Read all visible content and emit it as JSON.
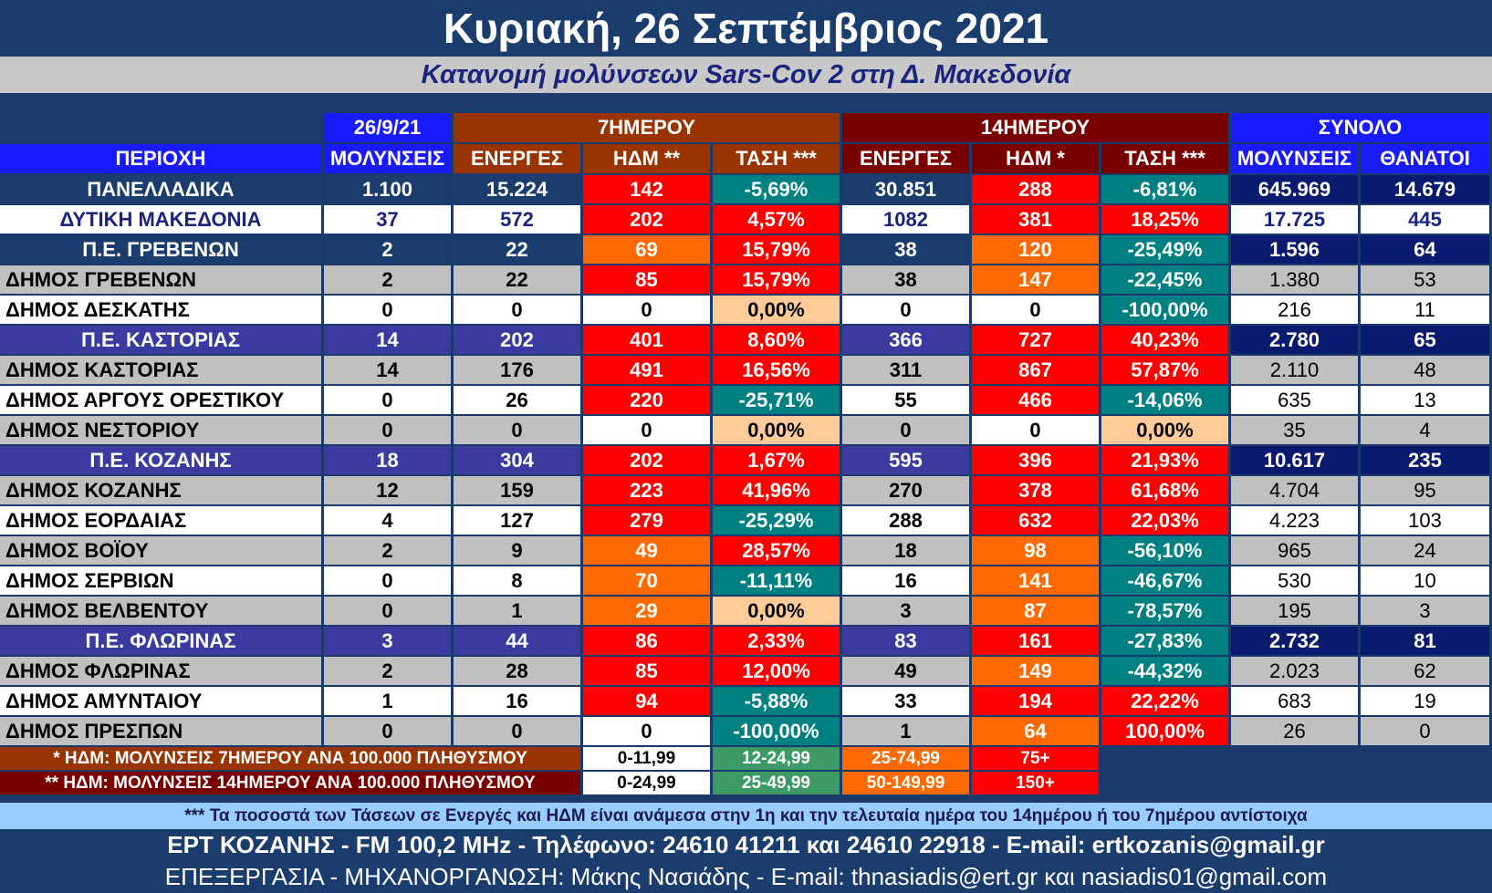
{
  "title": "Κυριακή, 26 Σεπτέμβριος 2021",
  "subtitle": "Κατανομή μολύνσεων Sars-Cov 2 στη Δ. Μακεδονία",
  "header": {
    "date": "26/9/21",
    "week7": "7ΗΜΕΡΟΥ",
    "week14": "14ΗΜΕΡΟΥ",
    "total": "ΣΥΝΟΛΟ",
    "area": "ΠΕΡΙΟΧΗ",
    "cols": [
      "ΜΟΛΥΝΣΕΙΣ",
      "ΕΝΕΡΓΕΣ",
      "ΗΔΜ **",
      "ΤΑΣΗ ***",
      "ΕΝΕΡΓΕΣ",
      "ΗΔΜ *",
      "ΤΑΣΗ ***",
      "ΜΟΛΥΝΣΕΙΣ",
      "ΘΑΝΑΤΟΙ"
    ]
  },
  "rows": [
    {
      "name": "ΠΑΝΕΛΛΑΔΙΚΑ",
      "type": "national",
      "cells": [
        "1.100",
        "15.224",
        "142",
        "-5,69%",
        "30.851",
        "288",
        "-6,81%",
        "645.969",
        "14.679"
      ],
      "colors": [
        "navy",
        "navy",
        "red",
        "teal",
        "navy",
        "red",
        "teal",
        "dnavy",
        "dnavy"
      ]
    },
    {
      "name": "ΔΥΤΙΚΗ ΜΑΚΕΔΟΝΙΑ",
      "type": "region",
      "cells": [
        "37",
        "572",
        "202",
        "4,57%",
        "1082",
        "381",
        "18,25%",
        "17.725",
        "445"
      ],
      "colors": [
        "white",
        "white",
        "red",
        "red",
        "white",
        "red",
        "red",
        "white",
        "white"
      ]
    },
    {
      "name": "Π.Ε. ΓΡΕΒΕΝΩΝ",
      "type": "pe-navy",
      "cells": [
        "2",
        "22",
        "69",
        "15,79%",
        "38",
        "120",
        "-25,49%",
        "1.596",
        "64"
      ],
      "colors": [
        "navy",
        "navy",
        "orange",
        "red",
        "navy",
        "orange",
        "teal",
        "dnavy",
        "dnavy"
      ]
    },
    {
      "name": "ΔΗΜΟΣ ΓΡΕΒΕΝΩΝ",
      "type": "gray",
      "cells": [
        "2",
        "22",
        "85",
        "15,79%",
        "38",
        "147",
        "-22,45%",
        "1.380",
        "53"
      ],
      "colors": [
        "gray",
        "gray",
        "red",
        "red",
        "gray",
        "orange",
        "teal",
        "gray",
        "gray"
      ]
    },
    {
      "name": "ΔΗΜΟΣ ΔΕΣΚΑΤΗΣ",
      "type": "white",
      "cells": [
        "0",
        "0",
        "0",
        "0,00%",
        "0",
        "0",
        "-100,00%",
        "216",
        "11"
      ],
      "colors": [
        "white",
        "white",
        "white",
        "peach",
        "white",
        "white",
        "teal",
        "white",
        "white"
      ]
    },
    {
      "name": "Π.Ε. ΚΑΣΤΟΡΙΑΣ",
      "type": "pe-purple",
      "cells": [
        "14",
        "202",
        "401",
        "8,60%",
        "366",
        "727",
        "40,23%",
        "2.780",
        "65"
      ],
      "colors": [
        "purple",
        "purple",
        "red",
        "red",
        "purple",
        "red",
        "red",
        "dnavy",
        "dnavy"
      ]
    },
    {
      "name": "ΔΗΜΟΣ ΚΑΣΤΟΡΙΑΣ",
      "type": "gray",
      "cells": [
        "14",
        "176",
        "491",
        "16,56%",
        "311",
        "867",
        "57,87%",
        "2.110",
        "48"
      ],
      "colors": [
        "gray",
        "gray",
        "red",
        "red",
        "gray",
        "red",
        "red",
        "gray",
        "gray"
      ]
    },
    {
      "name": "ΔΗΜΟΣ ΑΡΓΟΥΣ ΟΡΕΣΤΙΚΟΥ",
      "type": "white",
      "cells": [
        "0",
        "26",
        "220",
        "-25,71%",
        "55",
        "466",
        "-14,06%",
        "635",
        "13"
      ],
      "colors": [
        "white",
        "white",
        "red",
        "teal",
        "white",
        "red",
        "teal",
        "white",
        "white"
      ]
    },
    {
      "name": "ΔΗΜΟΣ ΝΕΣΤΟΡΙΟΥ",
      "type": "gray",
      "cells": [
        "0",
        "0",
        "0",
        "0,00%",
        "0",
        "0",
        "0,00%",
        "35",
        "4"
      ],
      "colors": [
        "gray",
        "gray",
        "white",
        "peach",
        "gray",
        "white",
        "peach",
        "gray",
        "gray"
      ]
    },
    {
      "name": "Π.Ε. ΚΟΖΑΝΗΣ",
      "type": "pe-purple",
      "cells": [
        "18",
        "304",
        "202",
        "1,67%",
        "595",
        "396",
        "21,93%",
        "10.617",
        "235"
      ],
      "colors": [
        "purple",
        "purple",
        "red",
        "red",
        "purple",
        "red",
        "red",
        "dnavy",
        "dnavy"
      ]
    },
    {
      "name": "ΔΗΜΟΣ ΚΟΖΑΝΗΣ",
      "type": "gray",
      "cells": [
        "12",
        "159",
        "223",
        "41,96%",
        "270",
        "378",
        "61,68%",
        "4.704",
        "95"
      ],
      "colors": [
        "gray",
        "gray",
        "red",
        "red",
        "gray",
        "red",
        "red",
        "gray",
        "gray"
      ]
    },
    {
      "name": "ΔΗΜΟΣ ΕΟΡΔΑΙΑΣ",
      "type": "white",
      "cells": [
        "4",
        "127",
        "279",
        "-25,29%",
        "288",
        "632",
        "22,03%",
        "4.223",
        "103"
      ],
      "colors": [
        "white",
        "white",
        "red",
        "teal",
        "white",
        "red",
        "red",
        "white",
        "white"
      ]
    },
    {
      "name": "ΔΗΜΟΣ ΒΟΪΟΥ",
      "type": "gray",
      "cells": [
        "2",
        "9",
        "49",
        "28,57%",
        "18",
        "98",
        "-56,10%",
        "965",
        "24"
      ],
      "colors": [
        "gray",
        "gray",
        "orange",
        "red",
        "gray",
        "orange",
        "teal",
        "gray",
        "gray"
      ]
    },
    {
      "name": "ΔΗΜΟΣ ΣΕΡΒΙΩΝ",
      "type": "white",
      "cells": [
        "0",
        "8",
        "70",
        "-11,11%",
        "16",
        "141",
        "-46,67%",
        "530",
        "10"
      ],
      "colors": [
        "white",
        "white",
        "orange",
        "teal",
        "white",
        "orange",
        "teal",
        "white",
        "white"
      ]
    },
    {
      "name": "ΔΗΜΟΣ ΒΕΛΒΕΝΤΟΥ",
      "type": "gray",
      "cells": [
        "0",
        "1",
        "29",
        "0,00%",
        "3",
        "87",
        "-78,57%",
        "195",
        "3"
      ],
      "colors": [
        "gray",
        "gray",
        "orange",
        "peach",
        "gray",
        "orange",
        "teal",
        "gray",
        "gray"
      ]
    },
    {
      "name": "Π.Ε. ΦΛΩΡΙΝΑΣ",
      "type": "pe-purple",
      "cells": [
        "3",
        "44",
        "86",
        "2,33%",
        "83",
        "161",
        "-27,83%",
        "2.732",
        "81"
      ],
      "colors": [
        "purple",
        "purple",
        "red",
        "red",
        "purple",
        "red",
        "teal",
        "dnavy",
        "dnavy"
      ]
    },
    {
      "name": "ΔΗΜΟΣ ΦΛΩΡΙΝΑΣ",
      "type": "gray",
      "cells": [
        "2",
        "28",
        "85",
        "12,00%",
        "49",
        "149",
        "-44,32%",
        "2.023",
        "62"
      ],
      "colors": [
        "gray",
        "gray",
        "red",
        "red",
        "gray",
        "orange",
        "teal",
        "gray",
        "gray"
      ]
    },
    {
      "name": "ΔΗΜΟΣ ΑΜΥΝΤΑΙΟΥ",
      "type": "white",
      "cells": [
        "1",
        "16",
        "94",
        "-5,88%",
        "33",
        "194",
        "22,22%",
        "683",
        "19"
      ],
      "colors": [
        "white",
        "white",
        "red",
        "teal",
        "white",
        "red",
        "red",
        "white",
        "white"
      ]
    },
    {
      "name": "ΔΗΜΟΣ ΠΡΕΣΠΩΝ",
      "type": "gray",
      "cells": [
        "0",
        "0",
        "0",
        "-100,00%",
        "1",
        "64",
        "100,00%",
        "26",
        "0"
      ],
      "colors": [
        "gray",
        "gray",
        "white",
        "teal",
        "gray",
        "orange",
        "red",
        "gray",
        "gray"
      ]
    }
  ],
  "legend": [
    {
      "label": "* ΗΔΜ: ΜΟΛΥΝΣΕΙΣ 7ΗΜΕΡΟΥ ΑΝΑ 100.000 ΠΛΗΘΥΣΜΟΥ",
      "ranges": [
        "0-11,99",
        "12-24,99",
        "25-74,99",
        "75+"
      ]
    },
    {
      "label": "** ΗΔΜ: ΜΟΛΥΝΣΕΙΣ 14ΗΜΕΡΟΥ ΑΝΑ 100.000 ΠΛΗΘΥΣΜΟΥ",
      "ranges": [
        "0-24,99",
        "25-49,99",
        "50-149,99",
        "150+"
      ]
    }
  ],
  "note": "*** Τα ποσοστά των Τάσεων σε Ενεργές και ΗΔΜ είναι ανάμεσα στην 1η και την τελευταία ημέρα του 14ημέρου ή του 7ημέρου αντίστοιχα",
  "footer1": "ΕΡΤ ΚΟΖΑΝΗΣ - FM 100,2 MHz - Τηλέφωνο:  24610 41211 και 24610 22918 - E-mail: ertkozanis@gmail.gr",
  "footer2": "ΕΠΕΞΕΡΓΑΣΙΑ  -  ΜΗΧΑΝΟΡΓΑΝΩΣΗ: Μάκης Νασιάδης  -   E-mail: thnasiadis@ert.gr και nasiadis01@gmail.com"
}
